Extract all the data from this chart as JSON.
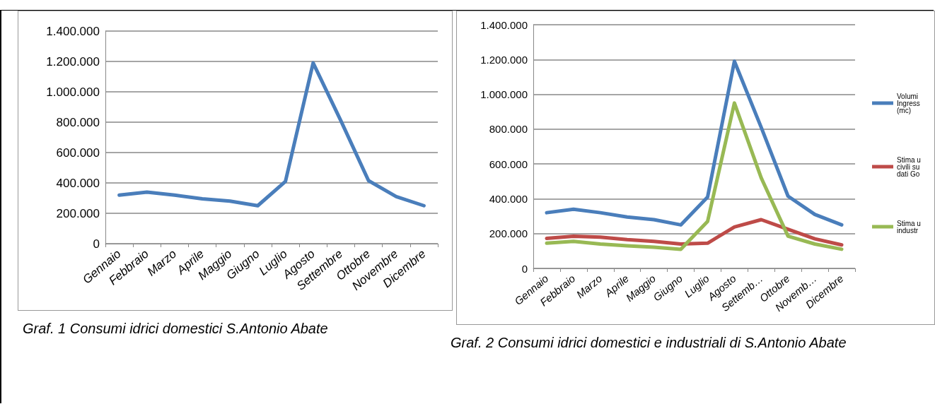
{
  "chart_data": [
    {
      "type": "line",
      "categories": [
        "Gennaio",
        "Febbraio",
        "Marzo",
        "Aprile",
        "Maggio",
        "Giugno",
        "Luglio",
        "Agosto",
        "Settembre",
        "Ottobre",
        "Novembre",
        "Dicembre"
      ],
      "series": [
        {
          "color": "#4a7ebb",
          "values": [
            320000,
            340000,
            320000,
            295000,
            280000,
            250000,
            410000,
            1190000,
            810000,
            415000,
            310000,
            250000
          ]
        }
      ],
      "ylim": [
        0,
        1400000
      ],
      "yticks": [
        {
          "value": 0,
          "label": "0"
        },
        {
          "value": 200000,
          "label": "200.000"
        },
        {
          "value": 400000,
          "label": "400.000"
        },
        {
          "value": 600000,
          "label": "600.000"
        },
        {
          "value": 800000,
          "label": "800.000"
        },
        {
          "value": 1000000,
          "label": "1.000.000"
        },
        {
          "value": 1200000,
          "label": "1.200.000"
        },
        {
          "value": 1400000,
          "label": "1.400.000"
        }
      ],
      "grid": "y",
      "legend": false,
      "marker": "none",
      "line_style": "solid",
      "annotations": [
        "Graf. 1 Consumi idrici domestici S.Antonio Abate"
      ]
    },
    {
      "type": "line",
      "categories": [
        "Gennaio",
        "Febbraio",
        "Marzo",
        "Aprile",
        "Maggio",
        "Giugno",
        "Luglio",
        "Agosto",
        "Settemb…",
        "Ottobre",
        "Novemb…",
        "Dicembre"
      ],
      "series": [
        {
          "name": "Volumi Ingress (mc)",
          "color": "#4a7ebb",
          "values": [
            320000,
            340000,
            320000,
            295000,
            280000,
            250000,
            410000,
            1190000,
            810000,
            415000,
            310000,
            250000
          ]
        },
        {
          "name": "Stima u civili su dati Go",
          "color": "#be4b48",
          "values": [
            172000,
            185000,
            180000,
            165000,
            155000,
            140000,
            145000,
            238000,
            280000,
            225000,
            170000,
            135000
          ]
        },
        {
          "name": "Stima u industr",
          "color": "#98b954",
          "values": [
            145000,
            155000,
            140000,
            130000,
            122000,
            110000,
            270000,
            950000,
            520000,
            185000,
            140000,
            110000
          ]
        }
      ],
      "ylim": [
        0,
        1400000
      ],
      "yticks": [
        {
          "value": 0,
          "label": "0"
        },
        {
          "value": 200000,
          "label": "200.000"
        },
        {
          "value": 400000,
          "label": "400.000"
        },
        {
          "value": 600000,
          "label": "600.000"
        },
        {
          "value": 800000,
          "label": "800.000"
        },
        {
          "value": 1000000,
          "label": "1.000.000"
        },
        {
          "value": 1200000,
          "label": "1.200.000"
        },
        {
          "value": 1400000,
          "label": "1.400.000"
        }
      ],
      "grid": "y",
      "legend": "right",
      "marker": "none",
      "line_style": "solid",
      "annotations": [
        "Graf. 2 Consumi idrici domestici e industriali di S.Antonio Abate"
      ]
    }
  ]
}
